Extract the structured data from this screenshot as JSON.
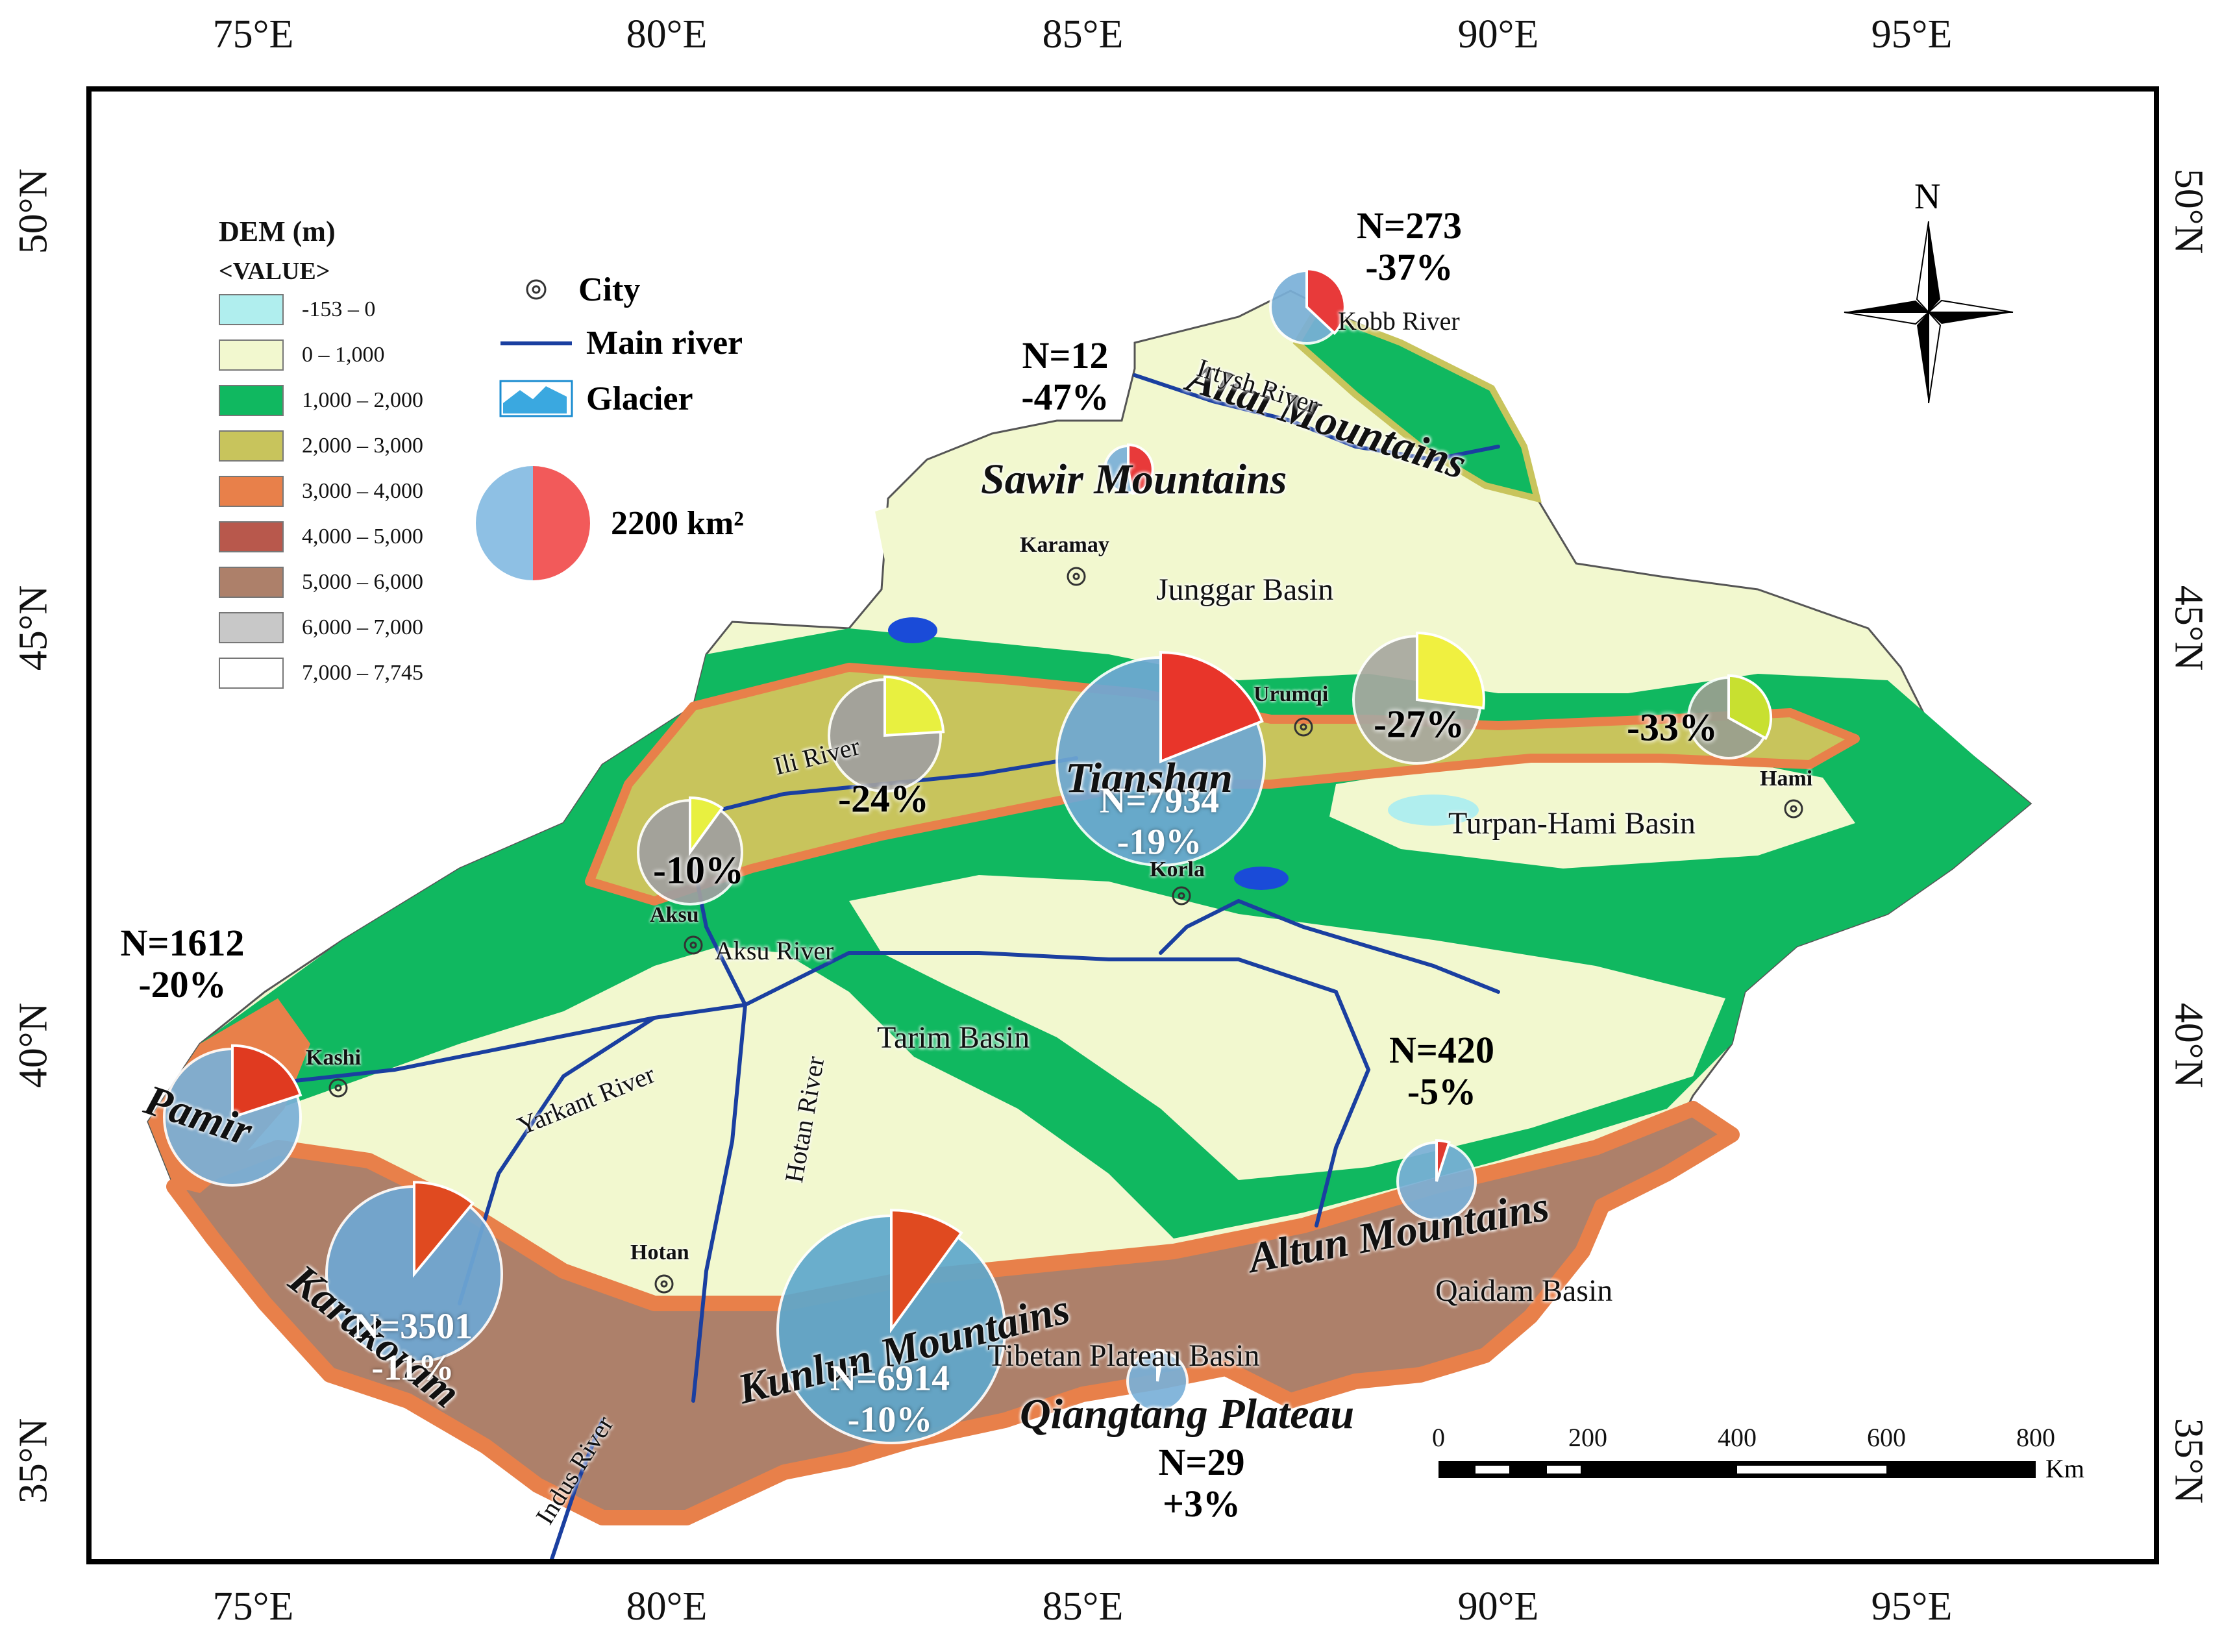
{
  "axes": {
    "top_ticks": [
      "75°E",
      "80°E",
      "85°E",
      "90°E",
      "95°E"
    ],
    "bottom_ticks": [
      "75°E",
      "80°E",
      "85°E",
      "90°E",
      "95°E"
    ],
    "left_ticks": [
      "50°N",
      "45°N",
      "40°N",
      "35°N"
    ],
    "right_ticks": [
      "50°N",
      "45°N",
      "40°N",
      "35°N"
    ]
  },
  "legend": {
    "dem_title": "DEM (m)",
    "value_label": "<VALUE>",
    "classes": [
      {
        "label": "-153 – 0",
        "color": "#b0eeee"
      },
      {
        "label": "0 – 1,000",
        "color": "#f2f8cf"
      },
      {
        "label": "1,000 – 2,000",
        "color": "#10b860"
      },
      {
        "label": "2,000 – 3,000",
        "color": "#c8c45c"
      },
      {
        "label": "3,000 – 4,000",
        "color": "#e8804a"
      },
      {
        "label": "4,000 – 5,000",
        "color": "#b8584c"
      },
      {
        "label": "5,000 – 6,000",
        "color": "#ad806a"
      },
      {
        "label": "6,000 – 7,000",
        "color": "#c8c8c8"
      },
      {
        "label": "7,000 – 7,745",
        "color": "#ffffff"
      }
    ],
    "city_label": "City",
    "river_label": "Main river",
    "glacier_label": "Glacier",
    "pie_reference_label": "2200 km²",
    "reference_colors": {
      "left": "#8ec0e4",
      "right": "#f25a5a"
    }
  },
  "north_arrow": {
    "label": "N"
  },
  "scale_bar": {
    "ticks": [
      "0",
      "200",
      "400",
      "600",
      "800"
    ],
    "unit": "Km"
  },
  "regions": [
    {
      "id": "altai",
      "n": "N=273",
      "change": "-37%",
      "change_value": -37,
      "wedge_color": "#e83a3a"
    },
    {
      "id": "sawir",
      "n": "N=12",
      "change": "-47%",
      "change_value": -47,
      "wedge_color": "#e83a3a"
    },
    {
      "id": "tianshan-central",
      "n": "N=7934",
      "change": "-19%",
      "change_value": -19,
      "wedge_color": "#e8352a"
    },
    {
      "id": "tianshan-east1",
      "n": "",
      "change": "-27%",
      "change_value": -27,
      "wedge_color": "#f0f040"
    },
    {
      "id": "tianshan-east2",
      "n": "",
      "change": "-33%",
      "change_value": -33,
      "wedge_color": "#c8e030"
    },
    {
      "id": "ili",
      "n": "",
      "change": "-24%",
      "change_value": -24,
      "wedge_color": "#e8f040"
    },
    {
      "id": "aksu",
      "n": "",
      "change": "-10%",
      "change_value": -10,
      "wedge_color": "#e8f040"
    },
    {
      "id": "pamir",
      "n": "N=1612",
      "change": "-20%",
      "change_value": -20,
      "wedge_color": "#e03a20"
    },
    {
      "id": "karakoram",
      "n": "N=3501",
      "change": "-11%",
      "change_value": -11,
      "wedge_color": "#e04a20"
    },
    {
      "id": "kunlun",
      "n": "N=6914",
      "change": "-10%",
      "change_value": -10,
      "wedge_color": "#e04a20"
    },
    {
      "id": "altun",
      "n": "N=420",
      "change": "-5%",
      "change_value": -5,
      "wedge_color": "#e03a30"
    },
    {
      "id": "qiangtang",
      "n": "N=29",
      "change": "+3%",
      "change_value": 3,
      "wedge_color": "#ffffff"
    }
  ],
  "place_labels": {
    "mountains": [
      "Altai Mountains",
      "Sawir Mountains",
      "Tianshan",
      "Pamir",
      "Karakoram",
      "Kunlun Mountains",
      "Altun Mountains",
      "Qiangtang Plateau"
    ],
    "basins": [
      "Junggar Basin",
      "Turpan-Hami Basin",
      "Tarim Basin",
      "Qaidam Basin",
      "Tibetan Plateau Basin"
    ],
    "rivers": [
      "Irtysh River",
      "Kobb River",
      "Ili River",
      "Aksu River",
      "Yarkant River",
      "Hotan River",
      "Indus River"
    ],
    "cities": [
      "Karamay",
      "Urumqi",
      "Hami",
      "Korla",
      "Aksu",
      "Kashi",
      "Hotan"
    ]
  }
}
